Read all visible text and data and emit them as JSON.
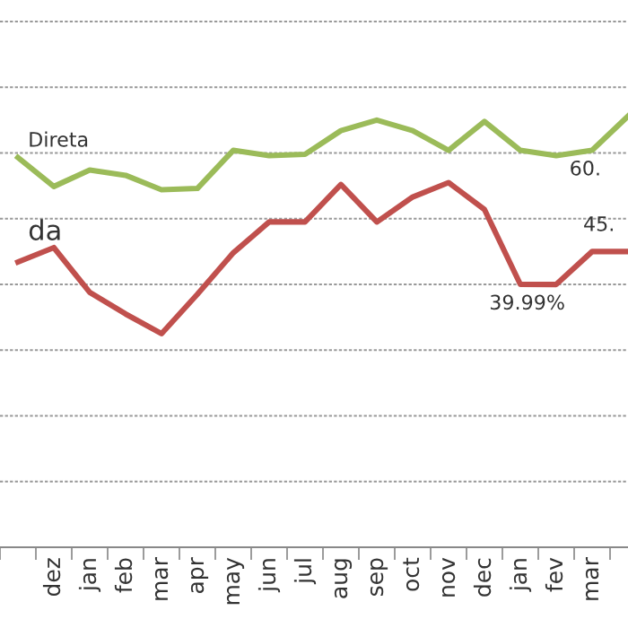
{
  "chart_data": {
    "type": "line",
    "grid": "y",
    "legend": false,
    "marker": "none",
    "line_style": "solid",
    "tick_labels": "x",
    "yticks": [
      {
        "value": 10,
        "label": null
      },
      {
        "value": 20,
        "label": null
      },
      {
        "value": 30,
        "label": null
      },
      {
        "value": 40,
        "label": null
      },
      {
        "value": 50,
        "label": null
      },
      {
        "value": 60,
        "label": null
      },
      {
        "value": 70,
        "label": null
      },
      {
        "value": 80,
        "label": null
      }
    ],
    "categories": [
      null,
      "dez",
      "jan",
      "feb",
      "mar",
      "apr",
      "may",
      "jun",
      "jul",
      "aug",
      "sep",
      "oct",
      "nov",
      "dec",
      "jan",
      "fev",
      "mar",
      null
    ],
    "series": [
      {
        "name": "Direta",
        "color": "#9bbb59",
        "values": [
          59.3,
          54.9,
          57.4,
          56.6,
          54.4,
          54.6,
          60.4,
          59.6,
          59.8,
          63.4,
          65.0,
          63.4,
          60.4,
          64.8,
          60.4,
          59.6,
          60.4,
          65.6
        ],
        "value_labels": [
          null,
          null,
          null,
          null,
          null,
          null,
          null,
          null,
          null,
          null,
          null,
          null,
          null,
          null,
          null,
          null,
          "60.",
          null
        ]
      },
      {
        "name": "da",
        "color": "#c0504d",
        "values": [
          43.4,
          45.6,
          38.8,
          35.5,
          32.5,
          38.5,
          44.8,
          49.5,
          49.5,
          55.2,
          49.5,
          53.3,
          55.5,
          51.4,
          40.0,
          39.99,
          45.0,
          45.0
        ],
        "value_labels": [
          null,
          null,
          null,
          null,
          null,
          null,
          null,
          null,
          null,
          null,
          null,
          null,
          null,
          null,
          null,
          "39.99%",
          "45.",
          null
        ]
      }
    ]
  }
}
